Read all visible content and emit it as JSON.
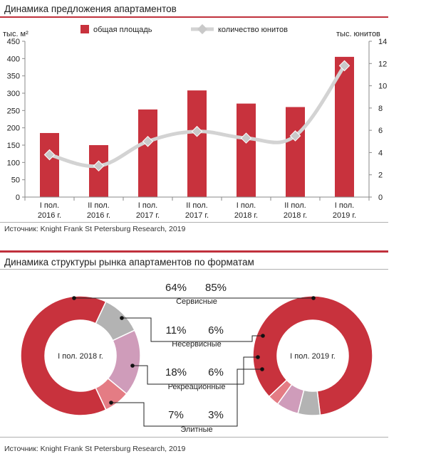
{
  "top": {
    "title": "Динамика предложения апартаментов",
    "source": "Источник: Knight Frank St Petersburg Research, 2019"
  },
  "bottom": {
    "title": "Динамика структуры рынка апартаментов по форматам",
    "source": "Источник: Knight Frank St Petersburg Research, 2019"
  },
  "colors": {
    "bar": "#c8323d",
    "line": "#d3d3d3",
    "marker": "#c9c9c9",
    "segments": [
      "#c8323d",
      "#b3b3b3",
      "#cf9cba",
      "#e47c84"
    ]
  },
  "chart_data": [
    {
      "type": "bar",
      "categories": [
        [
          "I пол.",
          "2016 г."
        ],
        [
          "II пол.",
          "2016 г."
        ],
        [
          "I пол.",
          "2017 г."
        ],
        [
          "II пол.",
          "2017 г."
        ],
        [
          "I пол.",
          "2018 г."
        ],
        [
          "II пол.",
          "2018 г."
        ],
        [
          "I пол.",
          "2019 г."
        ]
      ],
      "legend": {
        "placement": "top",
        "bar_label": "общая площадь",
        "line_label": "количество юнитов"
      },
      "ylabel": "тыс. м²",
      "y2label": "тыс. юнитов",
      "ylim": [
        0,
        450
      ],
      "yticks": [
        0,
        50,
        100,
        150,
        200,
        250,
        300,
        350,
        400,
        450
      ],
      "y2lim": [
        0,
        14
      ],
      "y2ticks": [
        0,
        2,
        4,
        6,
        8,
        10,
        12,
        14
      ],
      "series": [
        {
          "name": "общая площадь",
          "type": "bar",
          "axis": "left",
          "values": [
            185,
            150,
            253,
            308,
            270,
            260,
            405
          ]
        },
        {
          "name": "количество юнитов",
          "type": "line",
          "axis": "right",
          "values": [
            3.8,
            2.8,
            5.0,
            5.9,
            5.3,
            5.5,
            11.8
          ]
        }
      ],
      "grid": false
    },
    {
      "type": "pie",
      "variant": "donut",
      "periods": [
        "I пол. 2018 г.",
        "I пол. 2019 г."
      ],
      "categories": [
        "Сервисные",
        "Несервисные",
        "Рекреационные",
        "Элитные"
      ],
      "values_labels": [
        [
          "64%",
          "85%"
        ],
        [
          "11%",
          "6%"
        ],
        [
          "18%",
          "6%"
        ],
        [
          "7%",
          "3%"
        ]
      ],
      "series": [
        {
          "name": "I пол. 2018 г.",
          "values": [
            64,
            11,
            18,
            7
          ]
        },
        {
          "name": "I пол. 2019 г.",
          "values": [
            85,
            6,
            6,
            3
          ]
        }
      ]
    }
  ]
}
